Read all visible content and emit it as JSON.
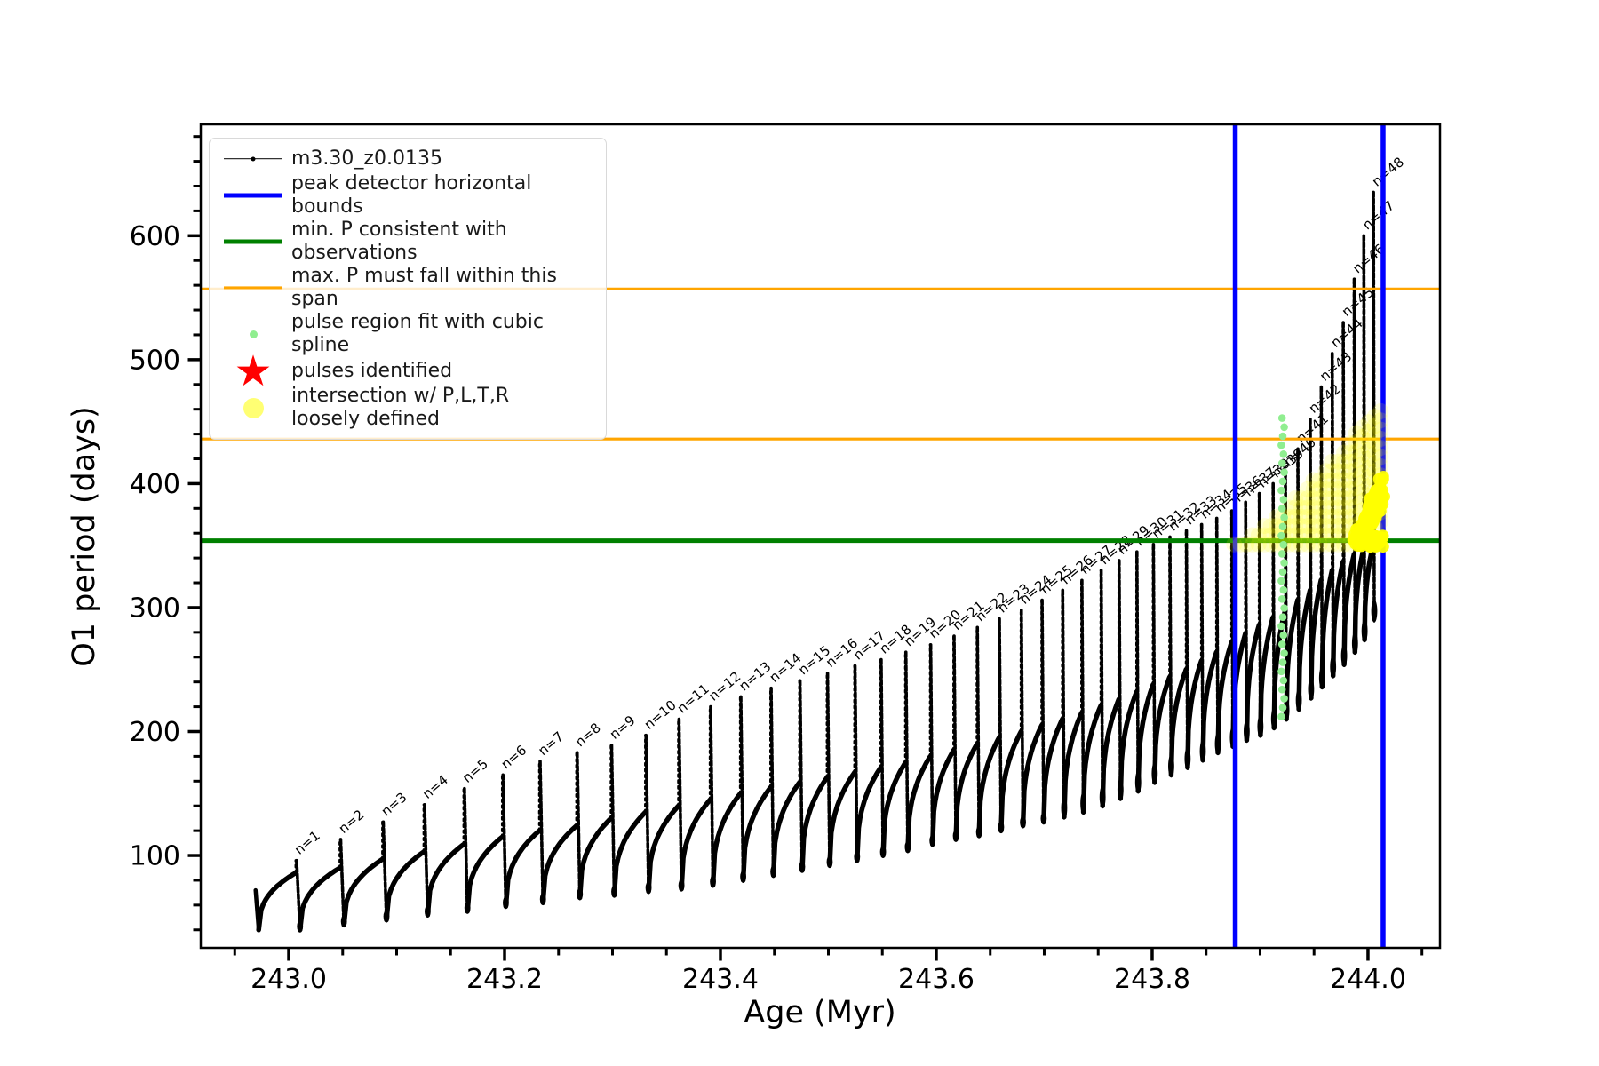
{
  "figure": {
    "xlabel": "Age (Myr)",
    "ylabel": "O1 period (days)",
    "xlim": [
      242.9185,
      244.0667
    ],
    "ylim": [
      25.5,
      689.8
    ],
    "x_ticks": {
      "values": [
        243.0,
        243.2,
        243.4,
        243.6,
        243.8,
        244.0
      ],
      "labels": [
        "243.0",
        "243.2",
        "243.4",
        "243.6",
        "243.8",
        "244.0"
      ],
      "minor_step": 0.05
    },
    "y_ticks": {
      "values": [
        100,
        200,
        300,
        400,
        500,
        600
      ],
      "labels": [
        "100",
        "200",
        "300",
        "400",
        "500",
        "600"
      ],
      "minor_step": 20
    },
    "grid": false
  },
  "colors": {
    "series": "#000000",
    "peak_bounds": "#0000ff",
    "min_p": "#008000",
    "max_p": "#ffa500",
    "spline_fit": "#90ee90",
    "pulses_identified": "#ff0000",
    "intersection": "#ffff00"
  },
  "legend": {
    "items": [
      {
        "label": "m3.30_z0.0135",
        "marker": "line-dot",
        "color": "#000000"
      },
      {
        "label": "peak detector horizontal bounds",
        "marker": "thick-line",
        "color": "#0000ff"
      },
      {
        "label": "min. P consistent with observations",
        "marker": "thick-line",
        "color": "#008000"
      },
      {
        "label": "max. P must fall within this span",
        "marker": "thin-line",
        "color": "#ffa500"
      },
      {
        "label": "pulse region fit with cubic spline",
        "marker": "small-dot",
        "color": "#90ee90"
      },
      {
        "label": "pulses identified",
        "marker": "star",
        "color": "#ff0000"
      },
      {
        "label": "intersection w/ P,L,T,R\nloosely defined",
        "marker": "big-dot",
        "color": "#ffff00"
      }
    ]
  },
  "chart_data": {
    "type": "line",
    "series_name": "m3.30_z0.0135",
    "xlabel": "Age (Myr)",
    "ylabel": "O1 period (days)",
    "pulse_label_prefix": "n=",
    "start_point": {
      "age": 242.9693,
      "period": 72
    },
    "first_min": {
      "age": 242.9722,
      "period": 40
    },
    "pulses": [
      {
        "n": 1,
        "age": 243.0066,
        "peak": 96,
        "base": 86,
        "min": 40
      },
      {
        "n": 2,
        "age": 243.0474,
        "peak": 113,
        "base": 90,
        "min": 44
      },
      {
        "n": 3,
        "age": 243.0869,
        "peak": 127,
        "base": 97,
        "min": 48
      },
      {
        "n": 4,
        "age": 243.1252,
        "peak": 141,
        "base": 103,
        "min": 52
      },
      {
        "n": 5,
        "age": 243.1622,
        "peak": 154,
        "base": 109,
        "min": 55
      },
      {
        "n": 6,
        "age": 243.1979,
        "peak": 165,
        "base": 115,
        "min": 59
      },
      {
        "n": 7,
        "age": 243.2323,
        "peak": 176,
        "base": 120,
        "min": 62
      },
      {
        "n": 8,
        "age": 243.2667,
        "peak": 183,
        "base": 124,
        "min": 66
      },
      {
        "n": 9,
        "age": 243.2986,
        "peak": 189,
        "base": 130,
        "min": 68
      },
      {
        "n": 10,
        "age": 243.3305,
        "peak": 197,
        "base": 135,
        "min": 71
      },
      {
        "n": 11,
        "age": 243.3611,
        "peak": 210,
        "base": 140,
        "min": 73
      },
      {
        "n": 12,
        "age": 243.3904,
        "peak": 220,
        "base": 145,
        "min": 76
      },
      {
        "n": 13,
        "age": 243.4184,
        "peak": 228,
        "base": 150,
        "min": 80
      },
      {
        "n": 14,
        "age": 243.4465,
        "peak": 235,
        "base": 155,
        "min": 84
      },
      {
        "n": 15,
        "age": 243.4733,
        "peak": 241,
        "base": 159,
        "min": 88
      },
      {
        "n": 16,
        "age": 243.4988,
        "peak": 247,
        "base": 163,
        "min": 92
      },
      {
        "n": 17,
        "age": 243.5243,
        "peak": 253,
        "base": 167,
        "min": 96
      },
      {
        "n": 18,
        "age": 243.5485,
        "peak": 258,
        "base": 171,
        "min": 100
      },
      {
        "n": 19,
        "age": 243.5714,
        "peak": 264,
        "base": 175,
        "min": 104
      },
      {
        "n": 20,
        "age": 243.5944,
        "peak": 270,
        "base": 180,
        "min": 109
      },
      {
        "n": 21,
        "age": 243.6161,
        "peak": 277,
        "base": 185,
        "min": 113
      },
      {
        "n": 22,
        "age": 243.6377,
        "peak": 284,
        "base": 190,
        "min": 116
      },
      {
        "n": 23,
        "age": 243.6581,
        "peak": 291,
        "base": 195,
        "min": 120
      },
      {
        "n": 24,
        "age": 243.6785,
        "peak": 298,
        "base": 200,
        "min": 124
      },
      {
        "n": 25,
        "age": 243.6977,
        "peak": 306,
        "base": 205,
        "min": 127
      },
      {
        "n": 26,
        "age": 243.7168,
        "peak": 314,
        "base": 210,
        "min": 131
      },
      {
        "n": 27,
        "age": 243.7346,
        "peak": 322,
        "base": 215,
        "min": 135
      },
      {
        "n": 28,
        "age": 243.7525,
        "peak": 330,
        "base": 221,
        "min": 140
      },
      {
        "n": 29,
        "age": 243.7691,
        "peak": 338,
        "base": 226,
        "min": 146
      },
      {
        "n": 30,
        "age": 243.7856,
        "peak": 345,
        "base": 232,
        "min": 152
      },
      {
        "n": 31,
        "age": 243.8009,
        "peak": 351,
        "base": 238,
        "min": 159
      },
      {
        "n": 32,
        "age": 243.8162,
        "peak": 357,
        "base": 244,
        "min": 165
      },
      {
        "n": 33,
        "age": 243.8315,
        "peak": 362,
        "base": 250,
        "min": 171
      },
      {
        "n": 34,
        "age": 243.8456,
        "peak": 367,
        "base": 257,
        "min": 177
      },
      {
        "n": 35,
        "age": 243.8596,
        "peak": 372,
        "base": 264,
        "min": 183
      },
      {
        "n": 36,
        "age": 243.8736,
        "peak": 378,
        "base": 272,
        "min": 188
      },
      {
        "n": 37,
        "age": 243.8864,
        "peak": 385,
        "base": 279,
        "min": 193
      },
      {
        "n": 38,
        "age": 243.8991,
        "peak": 392,
        "base": 286,
        "min": 197
      },
      {
        "n": 39,
        "age": 243.9119,
        "peak": 400,
        "base": 292,
        "min": 203
      },
      {
        "n": 40,
        "age": 243.9233,
        "peak": 409,
        "base": 298,
        "min": 210
      },
      {
        "n": 41,
        "age": 243.9348,
        "peak": 428,
        "base": 306,
        "min": 218
      },
      {
        "n": 42,
        "age": 243.9463,
        "peak": 452,
        "base": 314,
        "min": 227
      },
      {
        "n": 43,
        "age": 243.9565,
        "peak": 478,
        "base": 322,
        "min": 236
      },
      {
        "n": 44,
        "age": 243.9667,
        "peak": 505,
        "base": 330,
        "min": 245
      },
      {
        "n": 45,
        "age": 243.9769,
        "peak": 530,
        "base": 337,
        "min": 254
      },
      {
        "n": 46,
        "age": 243.9871,
        "peak": 565,
        "base": 343,
        "min": 264
      },
      {
        "n": 47,
        "age": 243.996,
        "peak": 600,
        "base": 348,
        "min": 274
      },
      {
        "n": 48,
        "age": 244.0049,
        "peak": 635,
        "base": 351,
        "min": 290
      }
    ],
    "vlines": {
      "name": "peak detector horizontal bounds",
      "color": "#0000ff",
      "ages": [
        243.877,
        244.014
      ]
    },
    "hline_min_P": {
      "name": "min. P consistent with observations",
      "color": "#008000",
      "period": 354
    },
    "hlines_max_P": {
      "name": "max. P must fall within this span",
      "color": "#ffa500",
      "periods": [
        436,
        557
      ]
    },
    "spline_fit_column": {
      "age": 243.921,
      "period_min": 212,
      "period_max": 456,
      "dot_step": 7.3,
      "color": "#90ee90"
    },
    "intersection_region": {
      "color": "#ffff00",
      "faint_wedge": {
        "age_min": 243.876,
        "age_max": 244.012,
        "period_base": 351,
        "period_top_at_right": 464
      },
      "dense_cluster": {
        "age_min": 243.986,
        "age_max": 244.016,
        "period_min": 348,
        "period_max": 401
      }
    }
  }
}
